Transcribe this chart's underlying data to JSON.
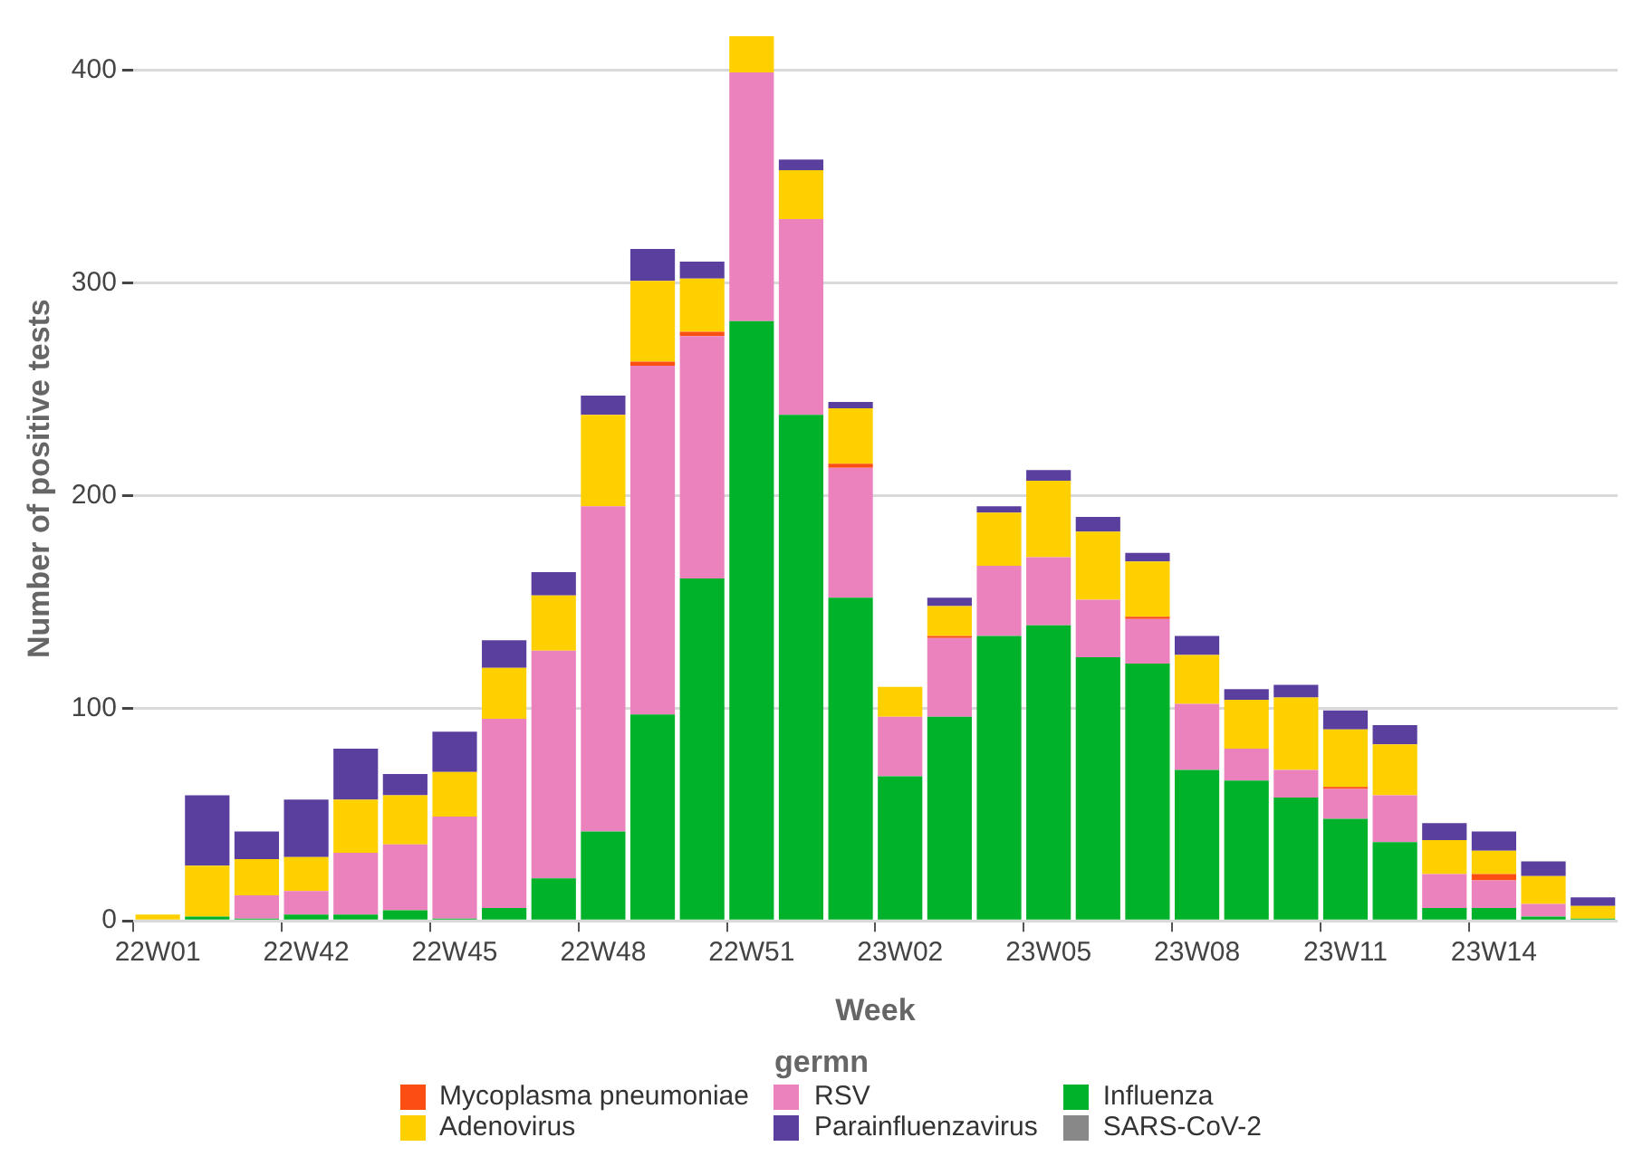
{
  "chart_data": {
    "type": "bar",
    "stacked": true,
    "xlabel": "Week",
    "ylabel": "Number of positive tests",
    "legend_title": "germn",
    "legend": "bottom",
    "grid": "y",
    "categories": [
      "22W01",
      null,
      null,
      "22W42",
      null,
      null,
      "22W45",
      null,
      null,
      "22W48",
      null,
      null,
      "22W51",
      null,
      null,
      "23W02",
      null,
      null,
      "23W05",
      null,
      null,
      "23W08",
      null,
      null,
      "23W11",
      null,
      null,
      "23W14",
      null,
      null
    ],
    "ylim": [
      0,
      416
    ],
    "yticks": [
      0,
      100,
      200,
      300,
      400
    ],
    "series": [
      {
        "name": "Influenza",
        "color": "#00b22a",
        "values": [
          0,
          2,
          1,
          3,
          3,
          5,
          1,
          6,
          20,
          42,
          97,
          161,
          282,
          238,
          152,
          68,
          96,
          134,
          139,
          124,
          121,
          71,
          66,
          58,
          48,
          37,
          6,
          6,
          2,
          1
        ]
      },
      {
        "name": "RSV",
        "color": "#ec82bd",
        "values": [
          0,
          0,
          11,
          11,
          29,
          31,
          48,
          89,
          107,
          153,
          164,
          114,
          117,
          92,
          61,
          28,
          37,
          33,
          32,
          27,
          21,
          31,
          15,
          13,
          14,
          22,
          16,
          13,
          6,
          0
        ]
      },
      {
        "name": "Mycoplasma pneumoniae",
        "color": "#fc4e12",
        "values": [
          0,
          0,
          0,
          0,
          0,
          0,
          0,
          0,
          0,
          0,
          2,
          2,
          0,
          0,
          2,
          0,
          1,
          0,
          0,
          0,
          1,
          0,
          0,
          0,
          1,
          0,
          0,
          3,
          0,
          0
        ]
      },
      {
        "name": "Adenovirus",
        "color": "#ffd000",
        "values": [
          3,
          24,
          17,
          16,
          25,
          23,
          21,
          24,
          26,
          43,
          38,
          25,
          17,
          23,
          26,
          14,
          14,
          25,
          36,
          32,
          26,
          23,
          23,
          34,
          27,
          24,
          16,
          11,
          13,
          6
        ]
      },
      {
        "name": "Parainfluenzavirus",
        "color": "#5b3f9f",
        "values": [
          0,
          33,
          13,
          27,
          24,
          10,
          19,
          13,
          11,
          9,
          15,
          8,
          0,
          5,
          3,
          0,
          4,
          3,
          5,
          7,
          4,
          9,
          5,
          6,
          9,
          9,
          8,
          9,
          7,
          4
        ]
      },
      {
        "name": "SARS-CoV-2",
        "color": "#888888",
        "values": [
          0,
          0,
          0,
          0,
          0,
          0,
          0,
          0,
          0,
          0,
          0,
          0,
          0,
          0,
          0,
          0,
          0,
          0,
          0,
          0,
          0,
          0,
          0,
          0,
          0,
          0,
          0,
          0,
          0,
          0
        ]
      }
    ]
  }
}
